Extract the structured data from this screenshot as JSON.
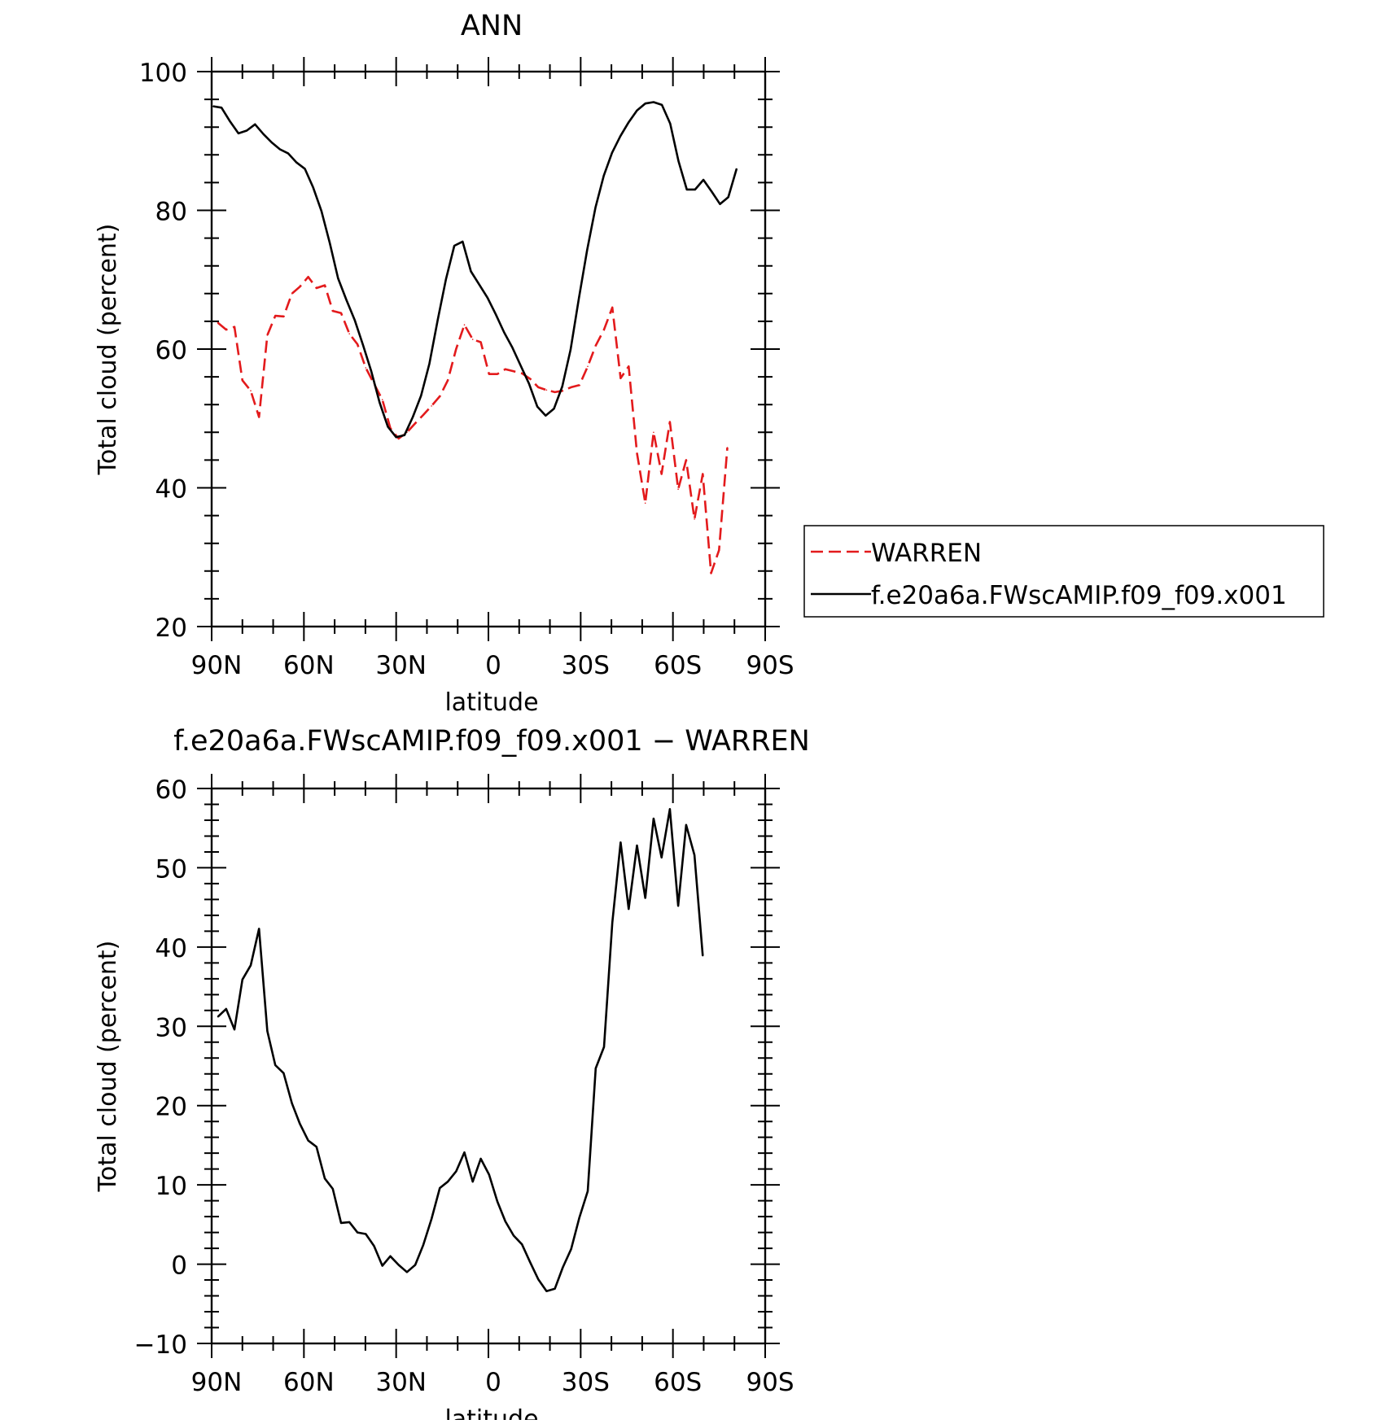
{
  "chart_data": [
    {
      "type": "line",
      "title": "ANN",
      "xlabel": "latitude",
      "ylabel": "Total cloud (percent)",
      "xlim": [
        90,
        -90
      ],
      "ylim": [
        20,
        100
      ],
      "x_ticks": [
        {
          "value": 90,
          "label": "90N"
        },
        {
          "value": 60,
          "label": "60N"
        },
        {
          "value": 30,
          "label": "30N"
        },
        {
          "value": 0,
          "label": "0"
        },
        {
          "value": -30,
          "label": "30S"
        },
        {
          "value": -60,
          "label": "60S"
        },
        {
          "value": -90,
          "label": "90S"
        }
      ],
      "y_ticks": [
        20,
        40,
        60,
        80,
        100
      ],
      "legend": "right",
      "series": [
        {
          "name": "WARREN",
          "color": "#e31a1c",
          "dash": true,
          "points": [
            [
              88,
              63.8
            ],
            [
              85.3,
              62.8
            ],
            [
              82.6,
              63.2
            ],
            [
              80,
              55.5
            ],
            [
              77.3,
              54
            ],
            [
              74.6,
              50.2
            ],
            [
              71.9,
              62
            ],
            [
              69.3,
              64.8
            ],
            [
              66.6,
              64.7
            ],
            [
              63.9,
              68
            ],
            [
              61.3,
              69
            ],
            [
              58.6,
              70.4
            ],
            [
              55.9,
              68.8
            ],
            [
              53.2,
              69.2
            ],
            [
              50.6,
              65.5
            ],
            [
              47.9,
              65.2
            ],
            [
              45.2,
              62.2
            ],
            [
              42.6,
              60.7
            ],
            [
              39.9,
              57.3
            ],
            [
              37.2,
              55
            ],
            [
              34.5,
              52.7
            ],
            [
              31.9,
              48.6
            ],
            [
              29.2,
              47.1
            ],
            [
              26.5,
              48
            ],
            [
              23.8,
              49.3
            ],
            [
              21.2,
              50.5
            ],
            [
              18.5,
              51.8
            ],
            [
              15.8,
              53.2
            ],
            [
              13.2,
              55.5
            ],
            [
              10.5,
              60
            ],
            [
              7.8,
              63.5
            ],
            [
              5.1,
              61.4
            ],
            [
              2.5,
              61
            ],
            [
              -0.2,
              56.4
            ],
            [
              -2.9,
              56.4
            ],
            [
              -5.5,
              57.1
            ],
            [
              -8.2,
              56.8
            ],
            [
              -10.9,
              56.5
            ],
            [
              -13.6,
              55.7
            ],
            [
              -16.2,
              54.5
            ],
            [
              -18.9,
              54.1
            ],
            [
              -21.6,
              53.8
            ],
            [
              -24.2,
              54
            ],
            [
              -26.9,
              54.5
            ],
            [
              -29.6,
              54.8
            ],
            [
              -32.3,
              57.5
            ],
            [
              -34.9,
              60.5
            ],
            [
              -37.6,
              62.8
            ],
            [
              -40.3,
              66
            ],
            [
              -43,
              55.8
            ],
            [
              -45.6,
              57.5
            ],
            [
              -48.3,
              45
            ],
            [
              -51,
              37.8
            ],
            [
              -53.7,
              48
            ],
            [
              -56.3,
              42
            ],
            [
              -59,
              49.5
            ],
            [
              -61.7,
              39.8
            ],
            [
              -64.3,
              44
            ],
            [
              -67,
              35.5
            ],
            [
              -69.7,
              42
            ],
            [
              -72.4,
              27.7
            ],
            [
              -75,
              31
            ],
            [
              -77.7,
              45.8
            ]
          ]
        },
        {
          "name": "f.e20a6a.FWscAMIP.f09_f09.x001",
          "color": "#000000",
          "dash": false,
          "points": [
            [
              89.5,
              95
            ],
            [
              86.8,
              94.8
            ],
            [
              84,
              92.8
            ],
            [
              81.3,
              91.1
            ],
            [
              78.6,
              91.5
            ],
            [
              75.9,
              92.4
            ],
            [
              73.2,
              91
            ],
            [
              70.5,
              89.8
            ],
            [
              67.8,
              88.8
            ],
            [
              65.1,
              88.2
            ],
            [
              62.4,
              86.9
            ],
            [
              59.7,
              86
            ],
            [
              57,
              83.3
            ],
            [
              54.3,
              79.9
            ],
            [
              51.6,
              75.3
            ],
            [
              48.9,
              70.2
            ],
            [
              46.2,
              67.1
            ],
            [
              43.5,
              64.2
            ],
            [
              40.8,
              60.6
            ],
            [
              38.1,
              56.8
            ],
            [
              35.4,
              52.3
            ],
            [
              32.7,
              48.8
            ],
            [
              30,
              47.3
            ],
            [
              27.3,
              47.6
            ],
            [
              24.6,
              50.2
            ],
            [
              21.9,
              53.3
            ],
            [
              19.2,
              57.9
            ],
            [
              16.5,
              64.2
            ],
            [
              13.8,
              70.1
            ],
            [
              11.1,
              74.9
            ],
            [
              8.4,
              75.5
            ],
            [
              5.7,
              71.2
            ],
            [
              3,
              69.3
            ],
            [
              0.3,
              67.4
            ],
            [
              -2.4,
              65
            ],
            [
              -5.1,
              62.4
            ],
            [
              -7.8,
              60.2
            ],
            [
              -10.5,
              57.6
            ],
            [
              -13.2,
              55
            ],
            [
              -15.9,
              51.7
            ],
            [
              -18.6,
              50.4
            ],
            [
              -21.3,
              51.4
            ],
            [
              -24,
              54.6
            ],
            [
              -26.7,
              59.9
            ],
            [
              -29.4,
              67.3
            ],
            [
              -32.1,
              74.3
            ],
            [
              -34.8,
              80.4
            ],
            [
              -37.5,
              85
            ],
            [
              -40.2,
              88.3
            ],
            [
              -42.9,
              90.7
            ],
            [
              -45.6,
              92.7
            ],
            [
              -48.3,
              94.4
            ],
            [
              -51,
              95.4
            ],
            [
              -53.7,
              95.6
            ],
            [
              -56.4,
              95.2
            ],
            [
              -59.1,
              92.5
            ],
            [
              -61.8,
              87.1
            ],
            [
              -64.5,
              83
            ],
            [
              -67.2,
              83
            ],
            [
              -69.9,
              84.4
            ],
            [
              -72.6,
              82.7
            ],
            [
              -75.3,
              80.9
            ],
            [
              -78,
              81.9
            ],
            [
              -80.7,
              86
            ]
          ]
        }
      ]
    },
    {
      "type": "line",
      "title": "f.e20a6a.FWscAMIP.f09_f09.x001 − WARREN",
      "xlabel": "latitude",
      "ylabel": "Total cloud (percent)",
      "xlim": [
        90,
        -90
      ],
      "ylim": [
        -10,
        60
      ],
      "x_ticks": [
        {
          "value": 90,
          "label": "90N"
        },
        {
          "value": 60,
          "label": "60N"
        },
        {
          "value": 30,
          "label": "30N"
        },
        {
          "value": 0,
          "label": "0"
        },
        {
          "value": -30,
          "label": "30S"
        },
        {
          "value": -60,
          "label": "60S"
        },
        {
          "value": -90,
          "label": "90S"
        }
      ],
      "y_ticks": [
        -10,
        0,
        10,
        20,
        30,
        40,
        50,
        60
      ],
      "series": [
        {
          "color": "#000000",
          "dash": false,
          "points": [
            [
              88,
              31.2
            ],
            [
              85.3,
              32.2
            ],
            [
              82.6,
              29.6
            ],
            [
              80,
              35.9
            ],
            [
              77.3,
              37.7
            ],
            [
              74.6,
              42.3
            ],
            [
              71.9,
              29.4
            ],
            [
              69.3,
              25.1
            ],
            [
              66.6,
              24.1
            ],
            [
              63.9,
              20.3
            ],
            [
              61.3,
              17.7
            ],
            [
              58.6,
              15.6
            ],
            [
              55.9,
              14.8
            ],
            [
              53.2,
              10.8
            ],
            [
              50.6,
              9.5
            ],
            [
              47.9,
              5.2
            ],
            [
              45.2,
              5.3
            ],
            [
              42.6,
              4
            ],
            [
              39.9,
              3.8
            ],
            [
              37.2,
              2.3
            ],
            [
              34.5,
              -0.2
            ],
            [
              31.9,
              1
            ],
            [
              29.2,
              -0.1
            ],
            [
              26.5,
              -1
            ],
            [
              23.8,
              -0.1
            ],
            [
              21.2,
              2.4
            ],
            [
              18.5,
              5.7
            ],
            [
              15.8,
              9.6
            ],
            [
              13.2,
              10.4
            ],
            [
              10.5,
              11.7
            ],
            [
              7.8,
              14.1
            ],
            [
              5.1,
              10.4
            ],
            [
              2.5,
              13.3
            ],
            [
              -0.2,
              11.3
            ],
            [
              -2.9,
              7.9
            ],
            [
              -5.5,
              5.4
            ],
            [
              -8.2,
              3.6
            ],
            [
              -10.9,
              2.5
            ],
            [
              -13.6,
              0.2
            ],
            [
              -16.2,
              -1.9
            ],
            [
              -18.9,
              -3.4
            ],
            [
              -21.6,
              -3.1
            ],
            [
              -24.2,
              -0.4
            ],
            [
              -26.9,
              1.9
            ],
            [
              -29.6,
              5.9
            ],
            [
              -32.3,
              9.2
            ],
            [
              -34.9,
              24.7
            ],
            [
              -37.6,
              27.4
            ],
            [
              -40.3,
              43.1
            ],
            [
              -43,
              53.2
            ],
            [
              -45.6,
              44.8
            ],
            [
              -48.3,
              52.8
            ],
            [
              -51,
              46.2
            ],
            [
              -53.7,
              56.2
            ],
            [
              -56.3,
              51.3
            ],
            [
              -59,
              57.4
            ],
            [
              -61.7,
              45.2
            ],
            [
              -64.3,
              55.4
            ],
            [
              -67,
              51.6
            ],
            [
              -69.7,
              38.9
            ]
          ]
        }
      ]
    }
  ]
}
